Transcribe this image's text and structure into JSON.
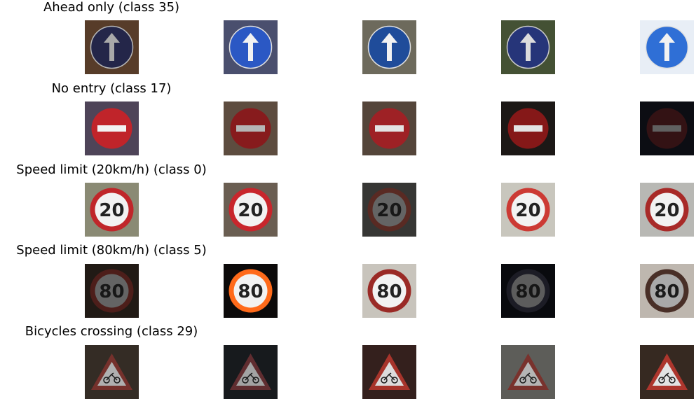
{
  "rows": [
    {
      "title": "Ahead only (class 35)",
      "sign": "ahead",
      "images": [
        {
          "bg": "#6b4a33",
          "sign_color": "#2c2f5a",
          "bright": 0.7
        },
        {
          "bg": "#4a4f6e",
          "sign_color": "#2b58c4",
          "bright": 1.0
        },
        {
          "bg": "#6d6a5c",
          "sign_color": "#1f4c9a",
          "bright": 1.0
        },
        {
          "bg": "#4b5a3a",
          "sign_color": "#2a3b86",
          "bright": 0.85
        },
        {
          "bg": "#e8eef6",
          "sign_color": "#2f6fd6",
          "bright": 1.0
        }
      ]
    },
    {
      "title": "No entry (class 17)",
      "sign": "noentry",
      "images": [
        {
          "bg": "#4e4458",
          "sign_color": "#c0242a",
          "bright": 1.0
        },
        {
          "bg": "#6a5748",
          "sign_color": "#9a1f22",
          "bright": 0.8
        },
        {
          "bg": "#5a4a3e",
          "sign_color": "#a82428",
          "bright": 0.9
        },
        {
          "bg": "#1e1a18",
          "sign_color": "#8e1a1a",
          "bright": 0.9
        },
        {
          "bg": "#12141c",
          "sign_color": "#4a1a1e",
          "bright": 0.5
        }
      ]
    },
    {
      "title": "Speed limit (20km/h) (class 0)",
      "sign": "speed",
      "speed_text": "20",
      "images": [
        {
          "bg": "#8a8a74",
          "sign_color": "#c0262a",
          "bright": 1.0
        },
        {
          "bg": "#6a5e52",
          "sign_color": "#c8262c",
          "bright": 1.0
        },
        {
          "bg": "#4a4a48",
          "sign_color": "#7a3a30",
          "bright": 0.55
        },
        {
          "bg": "#c8c6bd",
          "sign_color": "#cc3a34",
          "bright": 1.0
        },
        {
          "bg": "#b8b8b4",
          "sign_color": "#a82a28",
          "bright": 1.0
        }
      ]
    },
    {
      "title": "Speed limit (80km/h) (class 5)",
      "sign": "speed",
      "speed_text": "80",
      "images": [
        {
          "bg": "#2e241e",
          "sign_color": "#6a2a24",
          "bright": 0.55
        },
        {
          "bg": "#0c0a0a",
          "sign_color": "#ff6a1a",
          "bright": 1.0
        },
        {
          "bg": "#c8c4bc",
          "sign_color": "#9a2a26",
          "bright": 1.0
        },
        {
          "bg": "#0e1016",
          "sign_color": "#2a2a38",
          "bright": 0.45
        },
        {
          "bg": "#e8e0d6",
          "sign_color": "#5a3a30",
          "bright": 0.7
        }
      ]
    },
    {
      "title": "Bicycles crossing (class 29)",
      "sign": "bicycle",
      "images": [
        {
          "bg": "#3e342c",
          "sign_color": "#8a3a34",
          "bright": 0.75
        },
        {
          "bg": "#1e2226",
          "sign_color": "#7a3a3e",
          "bright": 0.65
        },
        {
          "bg": "#3a2420",
          "sign_color": "#b83a30",
          "bright": 0.85
        },
        {
          "bg": "#6a6a66",
          "sign_color": "#8a3a34",
          "bright": 0.8
        },
        {
          "bg": "#3a2c24",
          "sign_color": "#b83a30",
          "bright": 0.9
        }
      ]
    }
  ]
}
